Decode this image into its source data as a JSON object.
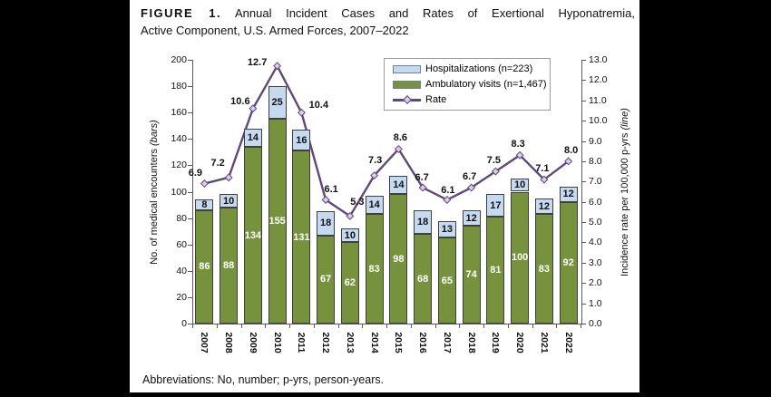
{
  "title": {
    "prefix": "FIGURE 1.",
    "line1_rest": "Annual Incident Cases and Rates of Exertional Hyponatremia,",
    "line2": "Active Component, U.S. Armed Forces, 2007–2022"
  },
  "footnote": "Abbreviations: No, number; p-yrs, person-years.",
  "chart_data": {
    "type": "combo-stacked-bar-line",
    "title": "Annual Incident Cases and Rates of Exertional Hyponatremia, Active Component, U.S. Armed Forces, 2007–2022",
    "categories": [
      "2007",
      "2008",
      "2009",
      "2010",
      "2011",
      "2012",
      "2013",
      "2014",
      "2015",
      "2016",
      "2017",
      "2018",
      "2019",
      "2020",
      "2021",
      "2022"
    ],
    "series": [
      {
        "name": "Hospitalizations (n=223)",
        "type": "bar",
        "stack": "top",
        "color": "#C5D9F1",
        "values": [
          8,
          10,
          14,
          25,
          16,
          18,
          10,
          14,
          14,
          18,
          13,
          12,
          17,
          10,
          12,
          12
        ]
      },
      {
        "name": "Ambulatory visits (n=1,467)",
        "type": "bar",
        "stack": "bottom",
        "color": "#76923C",
        "values": [
          86,
          88,
          134,
          155,
          131,
          67,
          62,
          83,
          98,
          68,
          65,
          74,
          81,
          100,
          83,
          92
        ]
      },
      {
        "name": "Rate",
        "type": "line",
        "color": "#5F497A",
        "marker": "diamond",
        "marker_fill": "#D9CDE9",
        "values": [
          6.9,
          7.2,
          10.6,
          12.7,
          10.4,
          6.1,
          5.3,
          7.3,
          8.6,
          6.7,
          6.1,
          6.7,
          7.5,
          8.3,
          7.1,
          8.0
        ]
      }
    ],
    "left_axis": {
      "label": "No. of medical encounters",
      "label_suffix": "(bars)",
      "min": 0,
      "max": 200,
      "step": 20
    },
    "right_axis": {
      "label": "Incidence rate per 100,000 p-yrs",
      "label_suffix": "(line)",
      "min": 0.0,
      "max": 13.0,
      "step": 1.0
    },
    "legend_position": "top-right",
    "grid": false,
    "bar_label_colors": {
      "hospitalizations": "#111111",
      "ambulatory": "#ffffff"
    }
  }
}
